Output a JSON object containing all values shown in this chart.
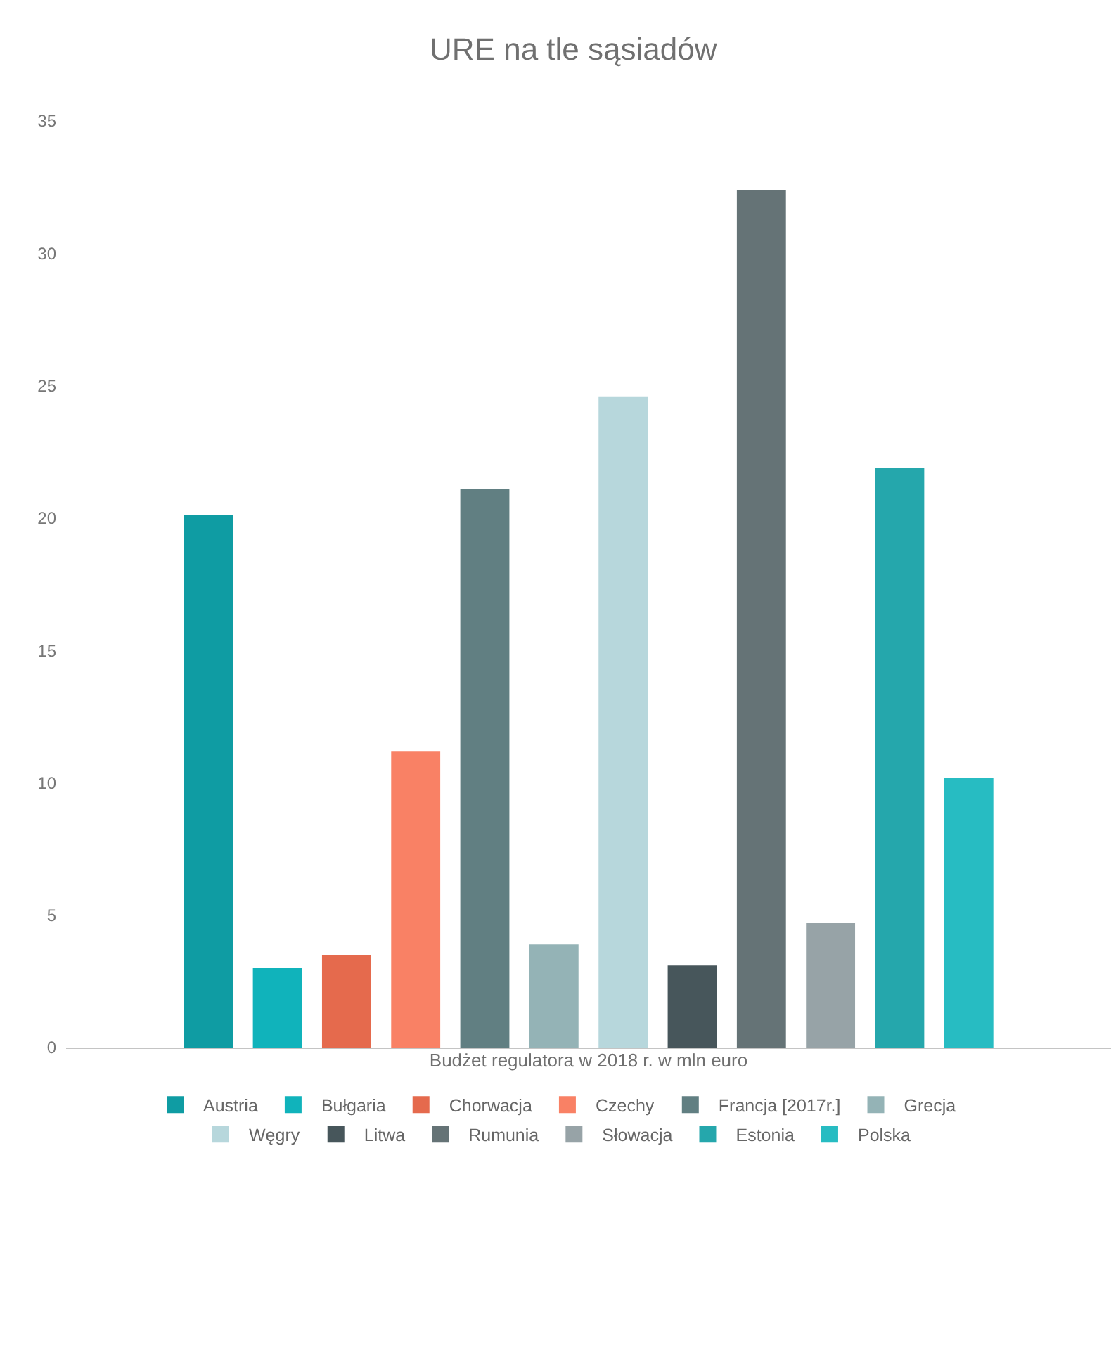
{
  "chart_data": {
    "type": "bar",
    "title": "URE na tle sąsiadów",
    "xlabel": "Budżet regulatora w 2018 r. w mln euro",
    "categories": [
      null
    ],
    "series": [
      {
        "name": "Austria",
        "color": "#0f9ca3",
        "values": [
          20.1
        ]
      },
      {
        "name": "Bułgaria",
        "color": "#10b3bb",
        "values": [
          3.0
        ]
      },
      {
        "name": "Chorwacja",
        "color": "#e56a4d",
        "values": [
          3.5
        ]
      },
      {
        "name": "Czechy",
        "color": "#f98165",
        "values": [
          11.2
        ]
      },
      {
        "name": "Francja [2017r.]",
        "color": "#617f82",
        "values": [
          21.1
        ]
      },
      {
        "name": "Grecja",
        "color": "#94b3b6",
        "values": [
          3.9
        ]
      },
      {
        "name": "Węgry",
        "color": "#b7d7dc",
        "values": [
          24.6
        ]
      },
      {
        "name": "Litwa",
        "color": "#47565b",
        "values": [
          3.1
        ]
      },
      {
        "name": "Rumunia",
        "color": "#657376",
        "values": [
          32.4
        ]
      },
      {
        "name": "Słowacja",
        "color": "#97a3a7",
        "values": [
          4.7
        ]
      },
      {
        "name": "Estonia",
        "color": "#25a7ac",
        "values": [
          21.9
        ]
      },
      {
        "name": "Polska",
        "color": "#27bcc2",
        "values": [
          10.2
        ]
      }
    ],
    "ylim": [
      0,
      35
    ],
    "yticks": [
      0,
      5,
      10,
      15,
      20,
      25,
      30,
      35
    ],
    "legend": "bottom",
    "tick_labels": "y"
  }
}
